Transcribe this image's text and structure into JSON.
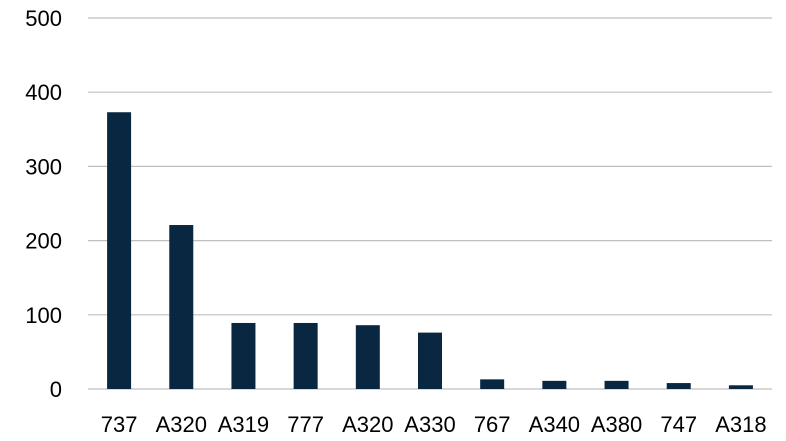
{
  "chart_data": {
    "type": "bar",
    "categories": [
      "737",
      "A320",
      "A319",
      "777",
      "A320",
      "A330",
      "767",
      "A340",
      "A380",
      "747",
      "A318"
    ],
    "values": [
      373,
      221,
      89,
      89,
      86,
      76,
      13,
      11,
      11,
      8,
      5
    ],
    "yticks": [
      "0",
      "100",
      "200",
      "300",
      "400",
      "500"
    ],
    "ylim": [
      0,
      500
    ],
    "grid": true,
    "legend": "none",
    "title": "",
    "xlabel": "",
    "ylabel": ""
  },
  "colors": {
    "bar": "#0a2741",
    "grid": "#bfbfbf",
    "text": "#000000"
  }
}
